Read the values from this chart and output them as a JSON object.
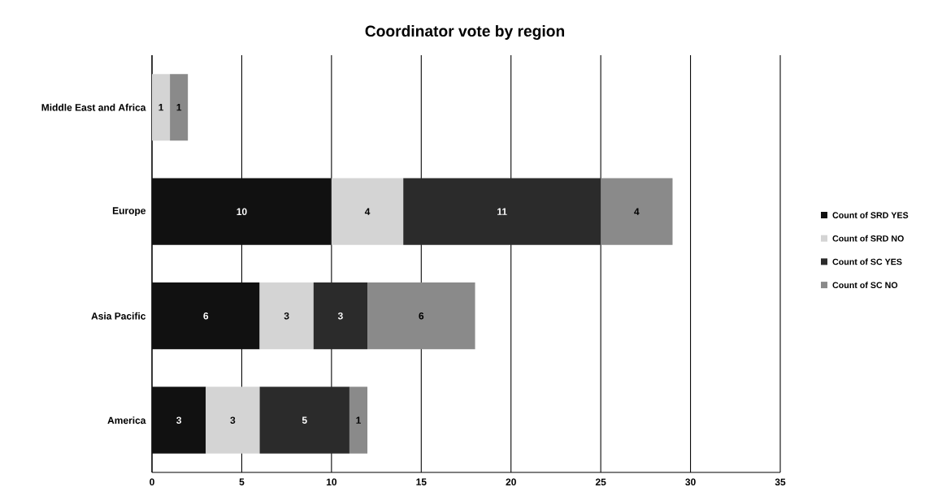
{
  "chart_data": {
    "type": "bar",
    "title": "Coordinator vote by region",
    "orientation": "horizontal",
    "stacked": true,
    "categories": [
      "Middle East and Africa",
      "Europe",
      "Asia Pacific",
      "America"
    ],
    "series": [
      {
        "name": "Count of SRD YES",
        "color": "#111111",
        "values": [
          null,
          10,
          6,
          3
        ]
      },
      {
        "name": "Count of SRD NO",
        "color": "#d4d4d4",
        "values": [
          1,
          4,
          3,
          3
        ]
      },
      {
        "name": "Count of SC YES",
        "color": "#2b2b2b",
        "values": [
          null,
          11,
          3,
          5
        ]
      },
      {
        "name": "Count of SC NO",
        "color": "#8a8a8a",
        "values": [
          1,
          4,
          6,
          1
        ]
      }
    ],
    "xlim": [
      0,
      35
    ],
    "xticks": [
      0,
      5,
      10,
      15,
      20,
      25,
      30,
      35
    ],
    "grid": "x",
    "legend": "right",
    "data_labels": true
  }
}
